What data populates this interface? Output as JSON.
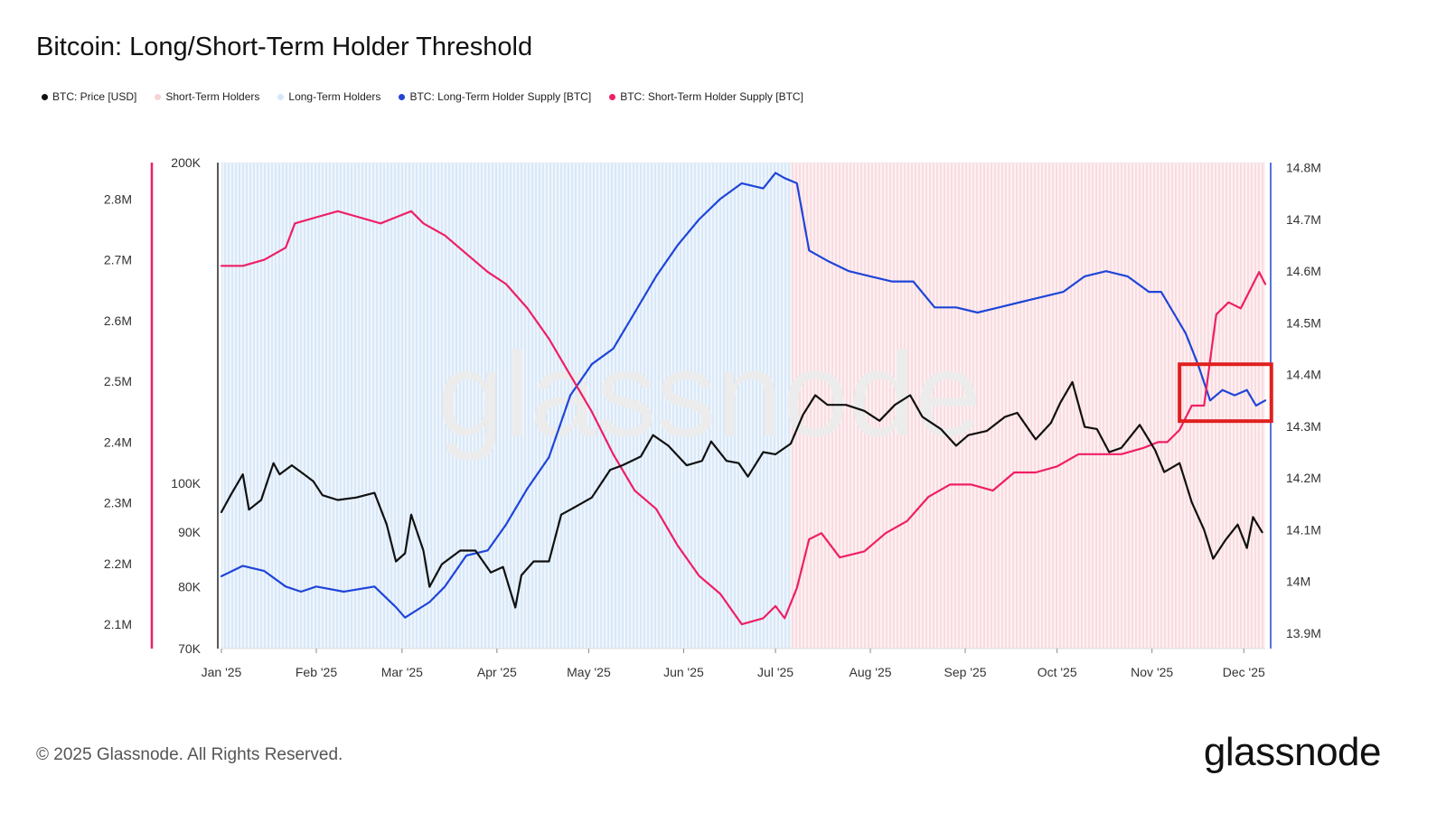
{
  "header": {
    "title": "Bitcoin: Long/Short-Term Holder Threshold"
  },
  "legend": [
    {
      "label": "BTC: Price [USD]",
      "color": "#111111"
    },
    {
      "label": "Short-Term Holders",
      "color": "#f7d2d7"
    },
    {
      "label": "Long-Term Holders",
      "color": "#d6e8f7"
    },
    {
      "label": "BTC: Long-Term Holder Supply [BTC]",
      "color": "#1f45d8"
    },
    {
      "label": "BTC: Short-Term Holder Supply [BTC]",
      "color": "#ee1f66"
    }
  ],
  "footer": {
    "copyright": "© 2025 Glassnode. All Rights Reserved.",
    "brand": "glassnode",
    "watermark": "glassnode"
  },
  "chart_data": {
    "type": "line",
    "title": "Bitcoin: Long/Short-Term Holder Threshold",
    "x_axis": {
      "ticks": [
        "Jan '25",
        "Feb '25",
        "Mar '25",
        "Apr '25",
        "May '25",
        "Jun '25",
        "Jul '25",
        "Aug '25",
        "Sep '25",
        "Oct '25",
        "Nov '25",
        "Dec '25"
      ],
      "range": [
        "2025-01-01",
        "2025-12-08"
      ]
    },
    "y_axes": {
      "sth_supply": {
        "ticks": [
          "2.1M",
          "2.2M",
          "2.3M",
          "2.4M",
          "2.5M",
          "2.6M",
          "2.7M",
          "2.8M"
        ],
        "range": [
          2060000,
          2860000
        ],
        "color": "#ee1f66",
        "position": "left-outer"
      },
      "price": {
        "ticks": [
          "70K",
          "80K",
          "90K",
          "100K",
          "200K"
        ],
        "range": [
          70000,
          200000
        ],
        "scale": "log",
        "position": "left-inner"
      },
      "lth_supply": {
        "ticks": [
          "13.9M",
          "14M",
          "14.1M",
          "14.2M",
          "14.3M",
          "14.4M",
          "14.5M",
          "14.6M",
          "14.7M",
          "14.8M"
        ],
        "range": [
          13870000,
          14810000
        ],
        "color": "#1f45d8",
        "position": "right"
      }
    },
    "regions": [
      {
        "name": "Long-Term Holders",
        "from": "2025-01-01",
        "to": "2025-07-06",
        "color": "#d6e8f7"
      },
      {
        "name": "Short-Term Holders",
        "from": "2025-07-06",
        "to": "2025-12-08",
        "color": "#f7d2d7"
      }
    ],
    "highlight_box": {
      "from": "2025-11-10",
      "to": "2025-12-10",
      "lth_range": [
        14310000,
        14420000
      ],
      "color": "#e02020"
    },
    "series": [
      {
        "name": "BTC: Price [USD]",
        "color": "#111111",
        "axis": "price",
        "dates": [
          "2025-01-01",
          "2025-01-04",
          "2025-01-08",
          "2025-01-10",
          "2025-01-14",
          "2025-01-18",
          "2025-01-20",
          "2025-01-24",
          "2025-01-28",
          "2025-01-31",
          "2025-02-03",
          "2025-02-08",
          "2025-02-14",
          "2025-02-20",
          "2025-02-24",
          "2025-02-27",
          "2025-03-02",
          "2025-03-04",
          "2025-03-08",
          "2025-03-10",
          "2025-03-14",
          "2025-03-20",
          "2025-03-25",
          "2025-03-30",
          "2025-04-03",
          "2025-04-07",
          "2025-04-09",
          "2025-04-13",
          "2025-04-18",
          "2025-04-22",
          "2025-04-25",
          "2025-05-02",
          "2025-05-08",
          "2025-05-12",
          "2025-05-18",
          "2025-05-22",
          "2025-05-27",
          "2025-06-02",
          "2025-06-07",
          "2025-06-10",
          "2025-06-15",
          "2025-06-19",
          "2025-06-22",
          "2025-06-27",
          "2025-07-01",
          "2025-07-06",
          "2025-07-10",
          "2025-07-14",
          "2025-07-18",
          "2025-07-24",
          "2025-07-30",
          "2025-08-04",
          "2025-08-09",
          "2025-08-14",
          "2025-08-18",
          "2025-08-24",
          "2025-08-29",
          "2025-09-02",
          "2025-09-08",
          "2025-09-14",
          "2025-09-18",
          "2025-09-24",
          "2025-09-29",
          "2025-10-02",
          "2025-10-06",
          "2025-10-10",
          "2025-10-14",
          "2025-10-18",
          "2025-10-22",
          "2025-10-28",
          "2025-11-02",
          "2025-11-05",
          "2025-11-10",
          "2025-11-14",
          "2025-11-18",
          "2025-11-21",
          "2025-11-25",
          "2025-11-29",
          "2025-12-02",
          "2025-12-04",
          "2025-12-07"
        ],
        "values": [
          94000,
          97500,
          102000,
          94500,
          96500,
          104500,
          102000,
          104000,
          102000,
          100500,
          97500,
          96500,
          97000,
          98000,
          91500,
          84500,
          86000,
          93500,
          86500,
          80000,
          84000,
          86500,
          86500,
          82500,
          83500,
          76500,
          82000,
          84500,
          84500,
          93500,
          94500,
          97000,
          103000,
          104000,
          106000,
          111000,
          108500,
          104000,
          105000,
          109500,
          105000,
          104500,
          101500,
          107000,
          106500,
          109000,
          116000,
          121000,
          118500,
          118500,
          117000,
          114500,
          118500,
          121000,
          115500,
          112500,
          108500,
          111000,
          112000,
          115500,
          116500,
          110000,
          114000,
          119000,
          124500,
          113000,
          112500,
          107000,
          108000,
          113500,
          107500,
          102500,
          104500,
          96000,
          90500,
          85000,
          88500,
          91500,
          87000,
          93000,
          90000
        ]
      },
      {
        "name": "BTC: Long-Term Holder Supply [BTC]",
        "color": "#1f45d8",
        "axis": "lth_supply",
        "dates": [
          "2025-01-01",
          "2025-01-08",
          "2025-01-15",
          "2025-01-22",
          "2025-01-27",
          "2025-02-01",
          "2025-02-10",
          "2025-02-20",
          "2025-02-27",
          "2025-03-02",
          "2025-03-10",
          "2025-03-15",
          "2025-03-22",
          "2025-03-29",
          "2025-04-04",
          "2025-04-11",
          "2025-04-18",
          "2025-04-25",
          "2025-05-02",
          "2025-05-09",
          "2025-05-16",
          "2025-05-23",
          "2025-05-30",
          "2025-06-06",
          "2025-06-13",
          "2025-06-20",
          "2025-06-27",
          "2025-07-01",
          "2025-07-04",
          "2025-07-08",
          "2025-07-12",
          "2025-07-18",
          "2025-07-25",
          "2025-08-01",
          "2025-08-08",
          "2025-08-15",
          "2025-08-22",
          "2025-08-29",
          "2025-09-05",
          "2025-09-12",
          "2025-09-19",
          "2025-09-26",
          "2025-10-03",
          "2025-10-10",
          "2025-10-17",
          "2025-10-24",
          "2025-10-31",
          "2025-11-04",
          "2025-11-08",
          "2025-11-12",
          "2025-11-16",
          "2025-11-20",
          "2025-11-24",
          "2025-11-28",
          "2025-12-02",
          "2025-12-05",
          "2025-12-08"
        ],
        "values": [
          14010000,
          14030000,
          14020000,
          13990000,
          13980000,
          13990000,
          13980000,
          13990000,
          13950000,
          13930000,
          13960000,
          13990000,
          14050000,
          14060000,
          14110000,
          14180000,
          14240000,
          14360000,
          14420000,
          14450000,
          14520000,
          14590000,
          14650000,
          14700000,
          14740000,
          14770000,
          14760000,
          14790000,
          14780000,
          14770000,
          14640000,
          14620000,
          14600000,
          14590000,
          14580000,
          14580000,
          14530000,
          14530000,
          14520000,
          14530000,
          14540000,
          14550000,
          14560000,
          14590000,
          14600000,
          14590000,
          14560000,
          14560000,
          14520000,
          14480000,
          14420000,
          14350000,
          14370000,
          14360000,
          14370000,
          14340000,
          14350000
        ]
      },
      {
        "name": "BTC: Short-Term Holder Supply [BTC]",
        "color": "#ee1f66",
        "axis": "sth_supply",
        "dates": [
          "2025-01-01",
          "2025-01-08",
          "2025-01-15",
          "2025-01-22",
          "2025-01-25",
          "2025-02-01",
          "2025-02-08",
          "2025-02-15",
          "2025-02-22",
          "2025-02-27",
          "2025-03-04",
          "2025-03-08",
          "2025-03-15",
          "2025-03-22",
          "2025-03-29",
          "2025-04-04",
          "2025-04-11",
          "2025-04-18",
          "2025-04-25",
          "2025-05-02",
          "2025-05-09",
          "2025-05-16",
          "2025-05-23",
          "2025-05-30",
          "2025-06-06",
          "2025-06-13",
          "2025-06-20",
          "2025-06-27",
          "2025-07-01",
          "2025-07-04",
          "2025-07-08",
          "2025-07-12",
          "2025-07-16",
          "2025-07-22",
          "2025-07-30",
          "2025-08-06",
          "2025-08-13",
          "2025-08-20",
          "2025-08-27",
          "2025-09-03",
          "2025-09-10",
          "2025-09-17",
          "2025-09-24",
          "2025-10-01",
          "2025-10-08",
          "2025-10-15",
          "2025-10-22",
          "2025-10-29",
          "2025-11-03",
          "2025-11-06",
          "2025-11-10",
          "2025-11-14",
          "2025-11-18",
          "2025-11-22",
          "2025-11-26",
          "2025-11-30",
          "2025-12-03",
          "2025-12-06",
          "2025-12-08"
        ],
        "values": [
          2690000,
          2690000,
          2700000,
          2720000,
          2760000,
          2770000,
          2780000,
          2770000,
          2760000,
          2770000,
          2780000,
          2760000,
          2740000,
          2710000,
          2680000,
          2660000,
          2620000,
          2570000,
          2510000,
          2450000,
          2380000,
          2320000,
          2290000,
          2230000,
          2180000,
          2150000,
          2100000,
          2110000,
          2130000,
          2110000,
          2160000,
          2240000,
          2250000,
          2210000,
          2220000,
          2250000,
          2270000,
          2310000,
          2330000,
          2330000,
          2320000,
          2350000,
          2350000,
          2360000,
          2380000,
          2380000,
          2380000,
          2390000,
          2400000,
          2400000,
          2420000,
          2460000,
          2460000,
          2610000,
          2630000,
          2620000,
          2650000,
          2680000,
          2660000
        ]
      }
    ]
  }
}
